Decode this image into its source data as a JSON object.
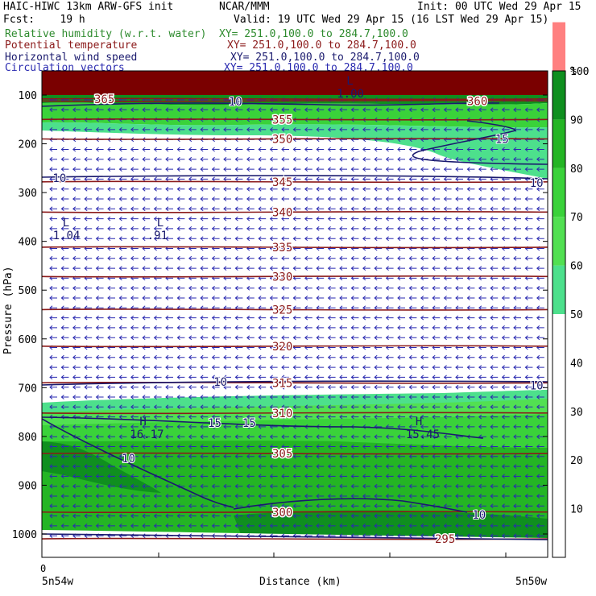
{
  "header": {
    "model": "HAIC-HIWC 13km ARW-GFS init",
    "org": "NCAR/MMM",
    "init": "Init: 00 UTC Wed 29 Apr 15",
    "fcst": "Fcst:    19 h",
    "valid": "Valid: 19 UTC Wed 29 Apr 15 (16 LST Wed 29 Apr 15)"
  },
  "fields": [
    {
      "name": "Relative humidity (w.r.t. water)",
      "xy": "XY= 251.0,100.0 to 284.7,100.0",
      "color": "#2e8b2e"
    },
    {
      "name": "Potential temperature",
      "xy": "XY= 251.0,100.0 to 284.7,100.0",
      "color": "#8b1a1a"
    },
    {
      "name": "Horizontal wind speed",
      "xy": "XY= 251.0,100.0 to 284.7,100.0",
      "color": "#1a1a6e"
    },
    {
      "name": "Circulation vectors",
      "xy": "XY= 251.0,100.0 to 284.7,100.0",
      "color": "#2a2ab0"
    }
  ],
  "axes": {
    "ylabel": "Pressure (hPa)",
    "xlabel": "Distance (km)",
    "x_left_label": "5n54w",
    "x_right_label": "5n50w",
    "x_zero_label": "0"
  },
  "colorbar": {
    "unit": "%",
    "levels": [
      50,
      60,
      70,
      80,
      90,
      100
    ],
    "ticks": [
      "10",
      "20",
      "30",
      "40",
      "50",
      "60",
      "70",
      "80",
      "90",
      "100"
    ],
    "colors": [
      "#4de08c",
      "#52e052",
      "#3ad23a",
      "#24b524",
      "#0f8f1f",
      "#ff8080"
    ]
  },
  "chart_data": {
    "type": "contour",
    "yaxis": {
      "label": "Pressure (hPa)",
      "ticks": [
        100,
        200,
        300,
        400,
        500,
        600,
        700,
        800,
        900,
        1000
      ],
      "range": [
        1050,
        70
      ]
    },
    "xaxis": {
      "label": "Distance (km)",
      "range": [
        0,
        440
      ],
      "tick_label": "0"
    },
    "theta_contours": [
      {
        "value": "365",
        "p": 108
      },
      {
        "value": "360",
        "p": 112
      },
      {
        "value": "355",
        "p": 150
      },
      {
        "value": "350",
        "p": 190
      },
      {
        "value": "345",
        "p": 278
      },
      {
        "value": "340",
        "p": 340
      },
      {
        "value": "335",
        "p": 412
      },
      {
        "value": "330",
        "p": 472
      },
      {
        "value": "325",
        "p": 540
      },
      {
        "value": "320",
        "p": 615
      },
      {
        "value": "315",
        "p": 690
      },
      {
        "value": "310",
        "p": 752
      },
      {
        "value": "305",
        "p": 835
      },
      {
        "value": "300",
        "p": 955
      },
      {
        "value": "295",
        "p": 1010
      }
    ],
    "wind_labels": [
      {
        "value": "10",
        "x": 168,
        "p": 113
      },
      {
        "value": "15",
        "x": 400,
        "p": 190
      },
      {
        "value": "10",
        "x": 15,
        "p": 270
      },
      {
        "value": "10",
        "x": 430,
        "p": 280
      },
      {
        "value": "10",
        "x": 155,
        "p": 688
      },
      {
        "value": "10",
        "x": 430,
        "p": 695
      },
      {
        "value": "15",
        "x": 150,
        "p": 772
      },
      {
        "value": "15",
        "x": 180,
        "p": 772
      },
      {
        "value": "10",
        "x": 75,
        "p": 845
      },
      {
        "value": "10",
        "x": 380,
        "p": 960
      }
    ],
    "extrema": [
      {
        "kind": "L",
        "value": "1.00",
        "x": 265,
        "p": 92
      },
      {
        "kind": "L",
        "value": "1.04",
        "x": 18,
        "p": 382
      },
      {
        "kind": "L",
        "value": ".91",
        "x": 100,
        "p": 382
      },
      {
        "kind": "H",
        "value": "16.17",
        "x": 85,
        "p": 790
      },
      {
        "kind": "H",
        "value": "15.45",
        "x": 325,
        "p": 790
      }
    ]
  }
}
